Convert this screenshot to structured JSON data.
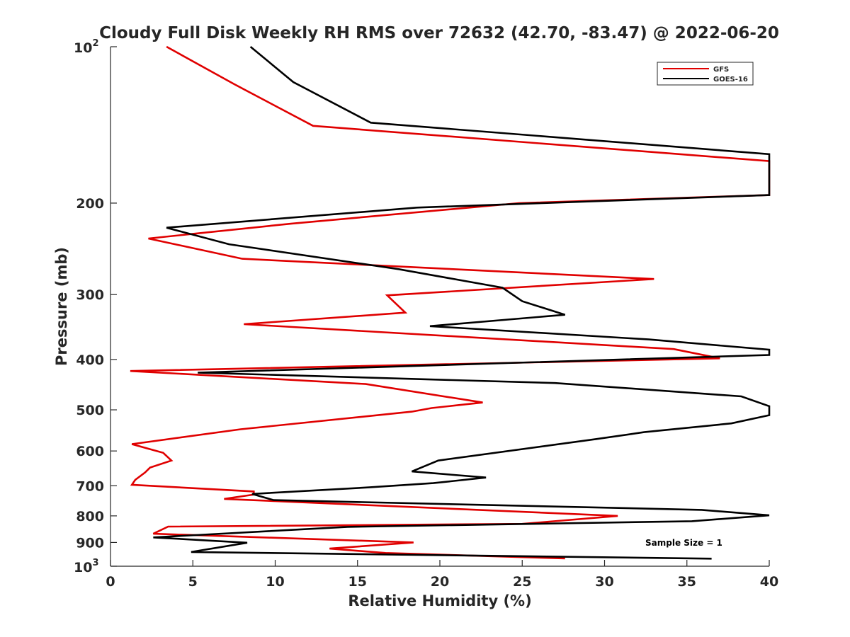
{
  "chart_data": {
    "type": "line",
    "title": "Cloudy Full Disk Weekly RH RMS over 72632 (42.70, -83.47) @ 2022-06-20",
    "xlabel": "Relative Humidity (%)",
    "ylabel": "Pressure (mb)",
    "xlim": [
      0,
      40
    ],
    "ylim": [
      100,
      1000
    ],
    "y_scale": "log",
    "y_reversed": true,
    "x_ticks": [
      0,
      5,
      10,
      15,
      20,
      25,
      30,
      35,
      40
    ],
    "y_ticks": [
      {
        "value": 100,
        "label": "10",
        "exp": "2"
      },
      {
        "value": 200,
        "label": "200"
      },
      {
        "value": 300,
        "label": "300"
      },
      {
        "value": 400,
        "label": "400"
      },
      {
        "value": 500,
        "label": "500"
      },
      {
        "value": 600,
        "label": "600"
      },
      {
        "value": 700,
        "label": "700"
      },
      {
        "value": 800,
        "label": "800"
      },
      {
        "value": 900,
        "label": "900"
      },
      {
        "value": 1000,
        "label": "10",
        "exp": "3"
      }
    ],
    "grid": false,
    "legend_position": "top-right",
    "annotation": "Sample Size = 1",
    "series": [
      {
        "name": "GFS",
        "color": "#e00000",
        "x": [
          3.4,
          7.5,
          12.3,
          40,
          40,
          24.8,
          11,
          2.3,
          8,
          33,
          16.8,
          17.9,
          8.1,
          34.2,
          37,
          1.2,
          15.5,
          22.6,
          19.5,
          18.3,
          7.9,
          1.3,
          3.2,
          3.7,
          2.4,
          2.1,
          1.5,
          1.3,
          8.7,
          8.7,
          6.9,
          30.8,
          25,
          3.5,
          2.6,
          18.4,
          13.3,
          16.7,
          27.6
        ],
        "y": [
          100,
          118,
          142,
          166,
          193,
          200,
          219,
          234,
          256,
          280,
          301,
          325,
          342,
          382,
          398,
          421,
          446,
          484,
          496,
          504,
          545,
          582,
          605,
          626,
          646,
          660,
          682,
          697,
          718,
          728,
          742,
          800,
          829,
          839,
          866,
          900,
          925,
          943,
          966
        ]
      },
      {
        "name": "GOES-16",
        "color": "#000000",
        "x": [
          8.5,
          11.1,
          15.8,
          40,
          40,
          18.6,
          3.4,
          7.2,
          17.5,
          23.8,
          25,
          27.6,
          19.4,
          32.7,
          40,
          40,
          5.3,
          27,
          38.3,
          40,
          40,
          37.7,
          32.4,
          29.5,
          19.9,
          18.3,
          22.8,
          19.6,
          15.7,
          8.6,
          9.9,
          35.9,
          40,
          35.3,
          14.4,
          2.6,
          8.3,
          4.9,
          36.5
        ],
        "y": [
          100,
          117,
          140,
          161,
          193,
          204,
          223,
          240,
          268,
          291,
          309,
          328,
          345,
          366,
          383,
          392,
          424,
          444,
          471,
          492,
          512,
          531,
          552,
          569,
          626,
          657,
          675,
          692,
          705,
          726,
          746,
          779,
          798,
          819,
          840,
          880,
          901,
          939,
          967
        ]
      }
    ]
  }
}
